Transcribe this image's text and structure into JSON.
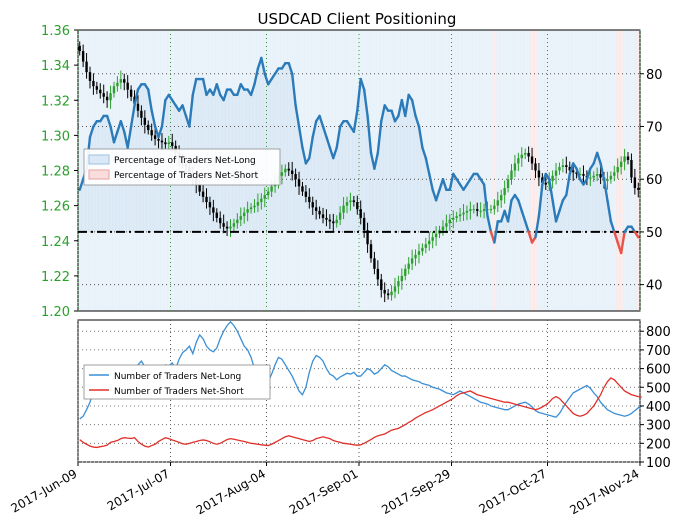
{
  "chart_data": [
    {
      "type": "line",
      "title": "USDCAD Client Positioning",
      "xlabel": "",
      "y_left_label": "",
      "y_right_label": "",
      "x_ticks": [
        "2017-Jun-09",
        "2017-Jul-07",
        "2017-Aug-04",
        "2017-Sep-01",
        "2017-Sep-29",
        "2017-Oct-27",
        "2017-Nov-24"
      ],
      "y_left_ticks": [
        "1.20",
        "1.22",
        "1.24",
        "1.26",
        "1.28",
        "1.30",
        "1.32",
        "1.34",
        "1.36"
      ],
      "y_left_range": [
        1.2,
        1.36
      ],
      "y_right_ticks": [
        "40",
        "50",
        "60",
        "70",
        "80"
      ],
      "y_right_range": [
        35,
        88.3
      ],
      "reference_line_right": 50,
      "legend": {
        "position": "upper-left",
        "entries": [
          "Percentage of Traders Net-Long",
          "Percentage of Traders Net-Short"
        ]
      },
      "colors": {
        "net_long": "#2b7bba",
        "net_short": "#e8534a",
        "long_fill": "#dbe9f6",
        "short_fill": "#f9dcdc",
        "candle_up": "#2ca02c",
        "candle_down": "#000000",
        "left_axis_text": "#2ca02c"
      },
      "price_series": {
        "name": "",
        "values": [
          1.348,
          1.342,
          1.336,
          1.331,
          1.328,
          1.326,
          1.324,
          1.322,
          1.32,
          1.324,
          1.328,
          1.33,
          1.332,
          1.33,
          1.326,
          1.322,
          1.318,
          1.314,
          1.31,
          1.306,
          1.303,
          1.3,
          1.298,
          1.297,
          1.296,
          1.295,
          1.296,
          1.294,
          1.29,
          1.287,
          1.284,
          1.282,
          1.279,
          1.276,
          1.272,
          1.268,
          1.265,
          1.262,
          1.259,
          1.256,
          1.253,
          1.25,
          1.248,
          1.247,
          1.248,
          1.25,
          1.252,
          1.254,
          1.256,
          1.258,
          1.259,
          1.26,
          1.262,
          1.264,
          1.266,
          1.268,
          1.271,
          1.274,
          1.277,
          1.279,
          1.281,
          1.28,
          1.278,
          1.275,
          1.271,
          1.268,
          1.265,
          1.262,
          1.259,
          1.257,
          1.255,
          1.253,
          1.252,
          1.251,
          1.25,
          1.252,
          1.256,
          1.26,
          1.262,
          1.263,
          1.262,
          1.258,
          1.253,
          1.246,
          1.238,
          1.23,
          1.224,
          1.218,
          1.212,
          1.21,
          1.209,
          1.211,
          1.214,
          1.217,
          1.22,
          1.224,
          1.227,
          1.23,
          1.232,
          1.234,
          1.236,
          1.238,
          1.24,
          1.242,
          1.244,
          1.246,
          1.248,
          1.25,
          1.252,
          1.253,
          1.254,
          1.255,
          1.256,
          1.257,
          1.258,
          1.258,
          1.257,
          1.257,
          1.258,
          1.258,
          1.258,
          1.26,
          1.263,
          1.266,
          1.27,
          1.275,
          1.28,
          1.284,
          1.287,
          1.289,
          1.29,
          1.288,
          1.284,
          1.28,
          1.276,
          1.273,
          1.272,
          1.274,
          1.277,
          1.28,
          1.282,
          1.283,
          1.282,
          1.28,
          1.279,
          1.278,
          1.278,
          1.277,
          1.276,
          1.276,
          1.277,
          1.278,
          1.276,
          1.274,
          1.275,
          1.277,
          1.279,
          1.282,
          1.285,
          1.288,
          1.286,
          1.276,
          1.27,
          1.269
        ]
      },
      "net_long_pct": {
        "name": "Percentage of Traders Net-Long",
        "values": [
          58,
          60,
          62,
          68,
          70,
          71,
          71,
          72,
          72,
          70,
          67,
          69,
          71,
          69,
          66,
          70,
          74,
          77,
          78,
          78,
          77,
          73,
          70,
          68,
          70,
          75,
          76,
          75,
          74,
          73,
          74,
          72,
          70,
          76,
          79,
          79,
          79,
          76,
          77,
          76,
          78,
          76,
          75,
          77,
          77,
          76,
          76,
          78,
          77,
          77,
          76,
          78,
          81,
          83,
          80,
          78,
          79,
          80,
          81,
          81,
          82,
          82,
          80,
          74,
          70,
          66,
          63,
          64,
          68,
          71,
          72,
          70,
          68,
          66,
          64,
          66,
          70,
          71,
          71,
          70,
          69,
          73,
          79,
          77,
          72,
          65,
          62,
          65,
          71,
          74,
          73,
          73,
          71,
          72,
          75,
          72,
          76,
          75,
          72,
          70,
          66,
          64,
          61,
          58,
          56,
          58,
          60,
          58,
          58,
          61,
          60,
          59,
          58,
          59,
          60,
          61,
          61,
          60,
          59,
          53,
          50,
          48,
          52,
          52,
          54,
          52,
          56,
          57,
          56,
          54,
          52,
          50,
          48,
          49,
          53,
          59,
          61,
          60,
          56,
          52,
          54,
          56,
          57,
          61,
          63,
          62,
          60,
          59,
          60,
          62,
          63,
          65,
          63,
          60,
          56,
          52,
          50,
          48,
          46,
          50,
          51,
          51,
          50,
          49,
          50
        ]
      },
      "traders_net_long": {
        "name": "Number of Traders Net-Long",
        "values": [
          330,
          345,
          380,
          420,
          480,
          530,
          560,
          545,
          575,
          600,
          585,
          610,
          600,
          575,
          560,
          575,
          600,
          620,
          640,
          610,
          590,
          570,
          595,
          615,
          600,
          620,
          615,
          630,
          600,
          650,
          685,
          700,
          720,
          680,
          740,
          780,
          760,
          720,
          700,
          690,
          710,
          760,
          800,
          830,
          850,
          830,
          800,
          760,
          720,
          700,
          660,
          600,
          560,
          540,
          520,
          530,
          570,
          620,
          660,
          650,
          620,
          590,
          560,
          520,
          480,
          460,
          500,
          580,
          640,
          670,
          660,
          640,
          600,
          570,
          560,
          540,
          555,
          565,
          575,
          570,
          580,
          560,
          560,
          580,
          600,
          590,
          570,
          580,
          600,
          620,
          610,
          590,
          580,
          570,
          560,
          560,
          550,
          540,
          535,
          530,
          520,
          515,
          510,
          500,
          495,
          490,
          480,
          470,
          465,
          460,
          470,
          480,
          470,
          460,
          450,
          440,
          430,
          420,
          415,
          410,
          400,
          395,
          390,
          385,
          380,
          380,
          390,
          400,
          410,
          415,
          420,
          410,
          395,
          375,
          365,
          360,
          355,
          350,
          345,
          340,
          360,
          390,
          420,
          445,
          470,
          480,
          490,
          500,
          510,
          495,
          470,
          450,
          420,
          400,
          380,
          370,
          360,
          355,
          350,
          345,
          350,
          360,
          375,
          390,
          400
        ]
      },
      "traders_net_short": {
        "name": "Number of Traders Net-Short",
        "values": [
          220,
          205,
          195,
          185,
          180,
          178,
          182,
          185,
          190,
          205,
          210,
          215,
          225,
          230,
          228,
          226,
          230,
          210,
          195,
          185,
          180,
          188,
          195,
          210,
          220,
          230,
          225,
          218,
          212,
          205,
          198,
          195,
          200,
          205,
          210,
          215,
          218,
          215,
          208,
          200,
          195,
          200,
          210,
          220,
          225,
          222,
          218,
          214,
          210,
          205,
          200,
          198,
          195,
          192,
          190,
          188,
          195,
          205,
          215,
          225,
          235,
          240,
          235,
          230,
          225,
          220,
          215,
          210,
          215,
          225,
          230,
          235,
          230,
          225,
          215,
          210,
          205,
          200,
          198,
          195,
          192,
          190,
          192,
          200,
          210,
          220,
          232,
          240,
          245,
          250,
          260,
          270,
          275,
          280,
          290,
          300,
          312,
          322,
          335,
          345,
          355,
          365,
          372,
          380,
          390,
          400,
          410,
          420,
          430,
          440,
          455,
          465,
          470,
          475,
          480,
          470,
          460,
          455,
          450,
          445,
          440,
          435,
          430,
          425,
          420,
          420,
          415,
          410,
          405,
          400,
          395,
          390,
          385,
          380,
          385,
          395,
          405,
          420,
          440,
          450,
          440,
          420,
          400,
          380,
          360,
          350,
          345,
          350,
          360,
          380,
          400,
          430,
          460,
          500,
          530,
          550,
          540,
          520,
          500,
          480,
          470,
          460,
          455,
          450,
          448
        ]
      },
      "y_bottom_ticks": [
        "100",
        "200",
        "300",
        "400",
        "500",
        "600",
        "700",
        "800"
      ],
      "y_bottom_range": [
        100,
        860
      ]
    }
  ]
}
